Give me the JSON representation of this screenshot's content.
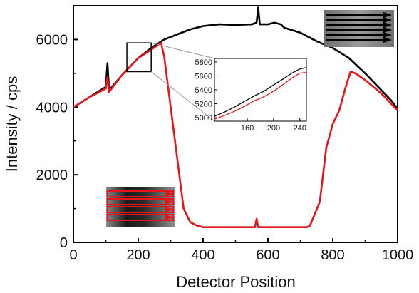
{
  "chart_data": {
    "type": "line",
    "xlabel": "Detector Position",
    "ylabel": "Intensity / cps",
    "xlim": [
      0,
      1000
    ],
    "ylim": [
      0,
      7000
    ],
    "x_ticks": [
      "0",
      "200",
      "400",
      "600",
      "800",
      "1000"
    ],
    "y_ticks": [
      "0",
      "2000",
      "4000",
      "6000"
    ],
    "colors": {
      "black_series": "#000000",
      "red_series": "#e8141b",
      "zoom_box": "#000000",
      "zoom_lines": "#999999"
    },
    "series": [
      {
        "color": "black",
        "x": [
          0,
          50,
          100,
          105,
          110,
          150,
          200,
          240,
          280,
          320,
          360,
          400,
          450,
          500,
          550,
          565,
          570,
          575,
          600,
          620,
          640,
          650,
          700,
          750,
          800,
          850,
          900,
          950,
          980,
          1000
        ],
        "y": [
          4000,
          4300,
          4600,
          5300,
          4500,
          4950,
          5450,
          5750,
          6000,
          6150,
          6300,
          6400,
          6450,
          6430,
          6450,
          6500,
          6950,
          6450,
          6450,
          6500,
          6450,
          6350,
          6200,
          5950,
          5750,
          5450,
          5000,
          4500,
          4200,
          3950
        ]
      },
      {
        "color": "red",
        "x": [
          0,
          50,
          100,
          105,
          110,
          150,
          200,
          240,
          270,
          280,
          300,
          320,
          340,
          360,
          380,
          400,
          450,
          500,
          560,
          565,
          570,
          600,
          650,
          700,
          720,
          730,
          760,
          780,
          800,
          820,
          840,
          855,
          870,
          900,
          950,
          980,
          1000
        ],
        "y": [
          4000,
          4300,
          4550,
          4900,
          4450,
          4950,
          5450,
          5700,
          5900,
          5500,
          4000,
          2500,
          1000,
          600,
          500,
          450,
          450,
          450,
          450,
          700,
          450,
          450,
          450,
          450,
          450,
          500,
          1200,
          2800,
          3500,
          3900,
          4600,
          5050,
          5000,
          4800,
          4400,
          4100,
          3900
        ]
      }
    ],
    "zoom_box": {
      "x": [
        165,
        240
      ],
      "y": [
        5050,
        5900
      ]
    },
    "inset": {
      "xlim": [
        110,
        250
      ],
      "ylim": [
        4950,
        5850
      ],
      "x_ticks": [
        "160",
        "200",
        "240"
      ],
      "y_ticks": [
        "5000",
        "5200",
        "5400",
        "5600",
        "5800"
      ],
      "series": [
        {
          "color": "black",
          "x": [
            110,
            125,
            140,
            155,
            170,
            185,
            200,
            215,
            228,
            240,
            250
          ],
          "y": [
            5020,
            5080,
            5150,
            5230,
            5310,
            5380,
            5470,
            5560,
            5640,
            5700,
            5720
          ]
        },
        {
          "color": "red",
          "x": [
            110,
            125,
            140,
            155,
            170,
            185,
            200,
            215,
            228,
            240,
            250
          ],
          "y": [
            4980,
            5030,
            5090,
            5160,
            5240,
            5300,
            5380,
            5480,
            5570,
            5640,
            5650
          ]
        }
      ]
    },
    "grid": false
  }
}
